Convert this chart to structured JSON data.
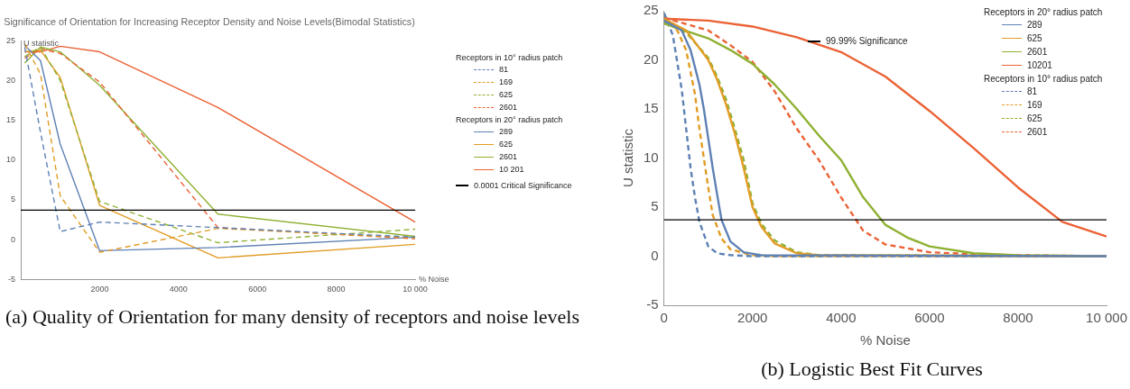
{
  "chart_data": [
    {
      "type": "line",
      "title": "Significance of Orientation for Increasing Receptor Density and Noise Levels(Bimodal Statistics)",
      "xlabel": "% Noise",
      "ylabel": "U statistic",
      "xlim": [
        0,
        10000
      ],
      "ylim": [
        -5,
        25
      ],
      "xticks": [
        2000,
        4000,
        6000,
        8000,
        {
          "value": 10000,
          "label": "10 000"
        }
      ],
      "yticks": [
        -5,
        0,
        5,
        10,
        15,
        20,
        25
      ],
      "grid": false,
      "legend": "right",
      "marker": "none",
      "annotations": [
        "Receptors in 10° radius patch",
        "Receptors in 20° radius patch",
        "(a) Quality of Orientation for many density of receptors and noise levels"
      ],
      "ref_lines": [
        {
          "axis": "y",
          "value": 3.7,
          "label": "0.0001 Critical Significance",
          "color": "#000000"
        }
      ],
      "series": [
        {
          "name": "81",
          "color": "#5e81b5",
          "line_style": "dashed",
          "x": [
            100,
            500,
            1000,
            2000,
            5000,
            10000
          ],
          "values": [
            24.2,
            13.5,
            1.0,
            2.2,
            1.5,
            0.3
          ]
        },
        {
          "name": "169",
          "color": "#e19c24",
          "line_style": "dashed",
          "x": [
            100,
            500,
            1000,
            2000,
            5000,
            10000
          ],
          "values": [
            24.6,
            20.8,
            5.5,
            -1.6,
            1.4,
            0.2
          ]
        },
        {
          "name": "625",
          "color": "#8fb032",
          "line_style": "dashed",
          "x": [
            100,
            500,
            1000,
            2000,
            5000,
            10000
          ],
          "values": [
            23.0,
            24.2,
            20.0,
            4.8,
            -0.4,
            1.3
          ]
        },
        {
          "name": "2601",
          "color": "#eb6235",
          "line_style": "dashed",
          "x": [
            100,
            500,
            1000,
            2000,
            5000,
            10000
          ],
          "values": [
            22.8,
            24.0,
            23.4,
            19.8,
            1.5,
            0.1
          ]
        },
        {
          "name": "289",
          "color": "#5e81b5",
          "line_style": "solid",
          "x": [
            100,
            500,
            1000,
            2000,
            5000,
            10000
          ],
          "values": [
            24.4,
            22.5,
            12.0,
            -1.4,
            -1.0,
            0.3
          ]
        },
        {
          "name": "625",
          "color": "#e19c24",
          "line_style": "solid",
          "x": [
            100,
            500,
            1000,
            2000,
            5000,
            10000
          ],
          "values": [
            23.6,
            23.8,
            20.4,
            4.3,
            -2.3,
            -0.6
          ]
        },
        {
          "name": "2601",
          "color": "#8fb032",
          "line_style": "solid",
          "x": [
            100,
            500,
            1000,
            2000,
            5000,
            10000
          ],
          "values": [
            22.2,
            24.2,
            23.6,
            19.4,
            3.2,
            0.4
          ]
        },
        {
          "name": "10 201",
          "color": "#eb6235",
          "line_style": "solid",
          "x": [
            100,
            500,
            1000,
            2000,
            5000,
            10000
          ],
          "values": [
            23.6,
            23.6,
            24.3,
            23.6,
            16.6,
            2.2
          ]
        }
      ]
    },
    {
      "type": "line",
      "xlabel": "% Noise",
      "ylabel": "U statistic",
      "xlim": [
        0,
        10000
      ],
      "ylim": [
        -5,
        25
      ],
      "xticks": [
        0,
        2000,
        4000,
        6000,
        8000,
        {
          "value": 10000,
          "label": "10 000"
        }
      ],
      "yticks": [
        -5,
        0,
        5,
        10,
        15,
        20,
        25
      ],
      "grid": false,
      "legend": "top right",
      "marker": "none",
      "annotations": [
        "Receptors in 20° radius patch",
        "Receptors in 10° radius patch",
        "(b) Logistic Best Fit Curves"
      ],
      "ref_lines": [
        {
          "axis": "y",
          "value": 3.7,
          "label": "99.99% Significance",
          "color": "#000000"
        }
      ],
      "series": [
        {
          "name": "289",
          "color": "#5e81b5",
          "line_style": "solid",
          "x": [
            0,
            400,
            600,
            800,
            900,
            1000,
            1100,
            1200,
            1300,
            1500,
            1800,
            2200,
            10000
          ],
          "values": [
            24,
            23,
            21,
            17.5,
            15,
            12,
            9,
            6.3,
            3.7,
            1.5,
            0.4,
            0.1,
            0
          ]
        },
        {
          "name": "625",
          "color": "#e19c24",
          "line_style": "solid",
          "x": [
            0,
            500,
            1000,
            1200,
            1400,
            1600,
            1800,
            2000,
            2200,
            2500,
            3000,
            3500,
            10000
          ],
          "values": [
            24.2,
            23,
            20,
            18,
            15.5,
            12.5,
            9,
            5,
            3,
            1.3,
            0.3,
            0.1,
            0
          ]
        },
        {
          "name": "2601",
          "color": "#8fb032",
          "line_style": "solid",
          "x": [
            0,
            1000,
            1500,
            2000,
            2500,
            3000,
            3500,
            4000,
            4500,
            5000,
            5500,
            6000,
            7000,
            8000,
            10000
          ],
          "values": [
            23.7,
            22.2,
            21,
            19.6,
            17.5,
            15,
            12.3,
            9.8,
            6,
            3.2,
            1.9,
            1,
            0.3,
            0.1,
            0
          ]
        },
        {
          "name": "10201",
          "color": "#eb6235",
          "line_style": "solid",
          "x": [
            0,
            1000,
            2000,
            3000,
            4000,
            5000,
            6000,
            7000,
            8000,
            9000,
            10000
          ],
          "values": [
            24.2,
            24,
            23.4,
            22.3,
            20.8,
            18.3,
            14.8,
            11,
            7,
            3.5,
            2.0
          ]
        },
        {
          "name": "81",
          "color": "#5e81b5",
          "line_style": "dashed",
          "x": [
            0,
            200,
            400,
            500,
            600,
            700,
            800,
            1000,
            1200,
            1500,
            2000,
            10000
          ],
          "values": [
            24.8,
            22.5,
            17,
            13,
            9,
            6,
            3.5,
            1,
            0.3,
            0.1,
            0,
            0
          ]
        },
        {
          "name": "169",
          "color": "#e19c24",
          "line_style": "dashed",
          "x": [
            0,
            300,
            500,
            700,
            800,
            900,
            1000,
            1100,
            1300,
            1500,
            2000,
            2500,
            10000
          ],
          "values": [
            24.5,
            23,
            21,
            16.5,
            13,
            10,
            7,
            4.2,
            1.8,
            0.7,
            0.1,
            0,
            0
          ]
        },
        {
          "name": "625",
          "color": "#8fb032",
          "line_style": "dashed",
          "x": [
            0,
            500,
            1000,
            1200,
            1400,
            1600,
            1800,
            2000,
            2200,
            2500,
            3000,
            3500,
            10000
          ],
          "values": [
            23.8,
            22.8,
            20.2,
            18.3,
            16,
            13,
            9.8,
            5.4,
            3.3,
            1.6,
            0.4,
            0.1,
            0
          ]
        },
        {
          "name": "2601",
          "color": "#eb6235",
          "line_style": "dashed",
          "x": [
            0,
            1000,
            1500,
            2000,
            2500,
            3000,
            3500,
            4000,
            4500,
            5000,
            6000,
            7000,
            8000,
            10000
          ],
          "values": [
            24.3,
            23,
            21.5,
            19.8,
            16.8,
            13,
            9.8,
            6,
            2.6,
            1.2,
            0.4,
            0.2,
            0.1,
            0
          ]
        }
      ]
    }
  ]
}
